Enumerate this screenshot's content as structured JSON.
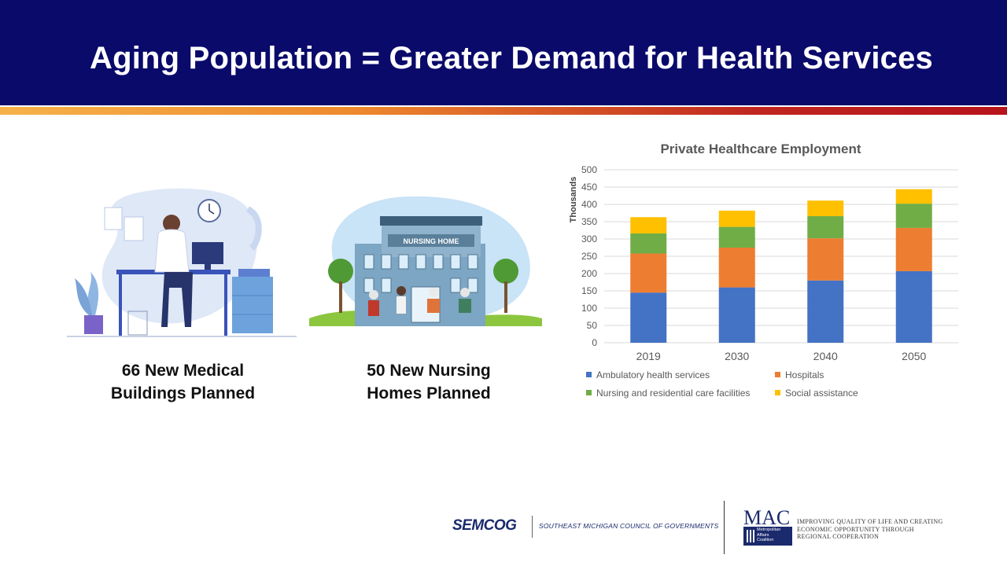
{
  "header": {
    "title": "Aging Population = Greater Demand for Health Services"
  },
  "captions": {
    "medical": {
      "line1": "66 New Medical",
      "line2": "Buildings Planned"
    },
    "nursing": {
      "line1": "50 New Nursing",
      "line2": "Homes Planned"
    }
  },
  "illustrations": {
    "nursing_sign": "NURSING HOME"
  },
  "chart_data": {
    "type": "bar",
    "stacked": true,
    "title": "Private Healthcare Employment",
    "ylabel": "Thousands",
    "xlabel": "",
    "ylim": [
      0,
      500
    ],
    "yticks": [
      0,
      50,
      100,
      150,
      200,
      250,
      300,
      350,
      400,
      450,
      500
    ],
    "categories": [
      "2019",
      "2030",
      "2040",
      "2050"
    ],
    "series": [
      {
        "name": "Ambulatory health services",
        "color": "#4472c4",
        "values": [
          145,
          160,
          180,
          207
        ]
      },
      {
        "name": "Hospitals",
        "color": "#ed7d31",
        "values": [
          113,
          115,
          122,
          125
        ]
      },
      {
        "name": "Nursing and residential care facilities",
        "color": "#70ad47",
        "values": [
          58,
          60,
          64,
          70
        ]
      },
      {
        "name": "Social assistance",
        "color": "#ffc000",
        "values": [
          47,
          47,
          45,
          42
        ]
      }
    ],
    "grid": true,
    "legend_position": "bottom"
  },
  "footer": {
    "semcog": "SEMCOG",
    "semcog_sub": "SOUTHEAST MICHIGAN COUNCIL OF GOVERNMENTS",
    "mac_logo": "MAC",
    "mac_box_lines": [
      "Metropolitan",
      "Affairs",
      "Coalition"
    ],
    "mac_tagline": [
      "IMPROVING QUALITY OF LIFE AND CREATING",
      "ECONOMIC OPPORTUNITY THROUGH",
      "REGIONAL COOPERATION"
    ]
  }
}
